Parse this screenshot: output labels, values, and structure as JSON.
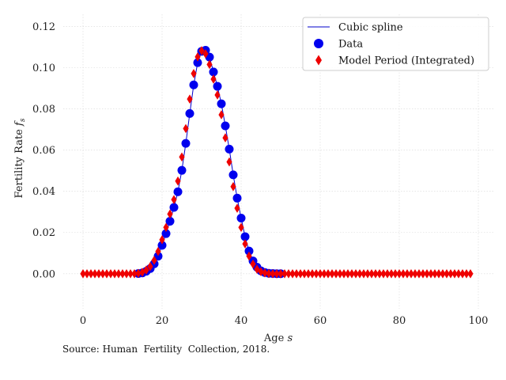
{
  "chart_data": {
    "type": "line",
    "xlabel": "Age s",
    "ylabel": "Fertility Rate f_s",
    "xlim": [
      -5,
      104
    ],
    "ylim": [
      -0.017,
      0.126
    ],
    "xticks": [
      0,
      20,
      40,
      60,
      80,
      100
    ],
    "xtick_labels": [
      "0",
      "20",
      "40",
      "60",
      "80",
      "100"
    ],
    "yticks": [
      0.0,
      0.02,
      0.04,
      0.06,
      0.08,
      0.1,
      0.12
    ],
    "ytick_labels": [
      "0.00",
      "0.02",
      "0.04",
      "0.06",
      "0.08",
      "0.10",
      "0.12"
    ],
    "grid": true,
    "legend_position": "top-right",
    "series": [
      {
        "name": "Cubic spline",
        "kind": "line",
        "color": "#0000cc",
        "x": [
          14,
          15,
          16,
          17,
          18,
          19,
          20,
          21,
          22,
          23,
          24,
          25,
          26,
          27,
          28,
          29,
          30,
          31,
          32,
          33,
          34,
          35,
          36,
          37,
          38,
          39,
          40,
          41,
          42,
          43,
          44,
          45,
          46,
          47,
          48,
          49,
          50
        ],
        "y": [
          0.0001,
          0.0004,
          0.0012,
          0.0025,
          0.0048,
          0.0085,
          0.0138,
          0.0195,
          0.0255,
          0.0322,
          0.0398,
          0.0502,
          0.0633,
          0.0778,
          0.0917,
          0.1025,
          0.108,
          0.1085,
          0.1052,
          0.098,
          0.091,
          0.0825,
          0.0718,
          0.0605,
          0.048,
          0.0367,
          0.027,
          0.018,
          0.011,
          0.0062,
          0.0032,
          0.0014,
          0.0006,
          0.0002,
          0.0001,
          0.0,
          0.0
        ]
      },
      {
        "name": "Data",
        "kind": "scatter",
        "marker": "circle",
        "color": "#0000ee",
        "x": [
          14,
          15,
          16,
          17,
          18,
          19,
          20,
          21,
          22,
          23,
          24,
          25,
          26,
          27,
          28,
          29,
          30,
          31,
          32,
          33,
          34,
          35,
          36,
          37,
          38,
          39,
          40,
          41,
          42,
          43,
          44,
          45,
          46,
          47,
          48,
          49,
          50
        ],
        "y": [
          0.0001,
          0.0004,
          0.0012,
          0.0025,
          0.0048,
          0.0085,
          0.0138,
          0.0195,
          0.0255,
          0.0322,
          0.0398,
          0.0502,
          0.0633,
          0.0778,
          0.0917,
          0.1025,
          0.108,
          0.1085,
          0.1052,
          0.098,
          0.091,
          0.0825,
          0.0718,
          0.0605,
          0.048,
          0.0367,
          0.027,
          0.018,
          0.011,
          0.0062,
          0.0032,
          0.0014,
          0.0006,
          0.0002,
          0.0001,
          0.0,
          0.0
        ]
      },
      {
        "name": "Model Period (Integrated)",
        "kind": "scatter",
        "marker": "diamond",
        "color": "#ee0000",
        "x": [
          0,
          1,
          2,
          3,
          4,
          5,
          6,
          7,
          8,
          9,
          10,
          11,
          12,
          13,
          14,
          15,
          16,
          17,
          18,
          19,
          20,
          21,
          22,
          23,
          24,
          25,
          26,
          27,
          28,
          29,
          30,
          31,
          32,
          33,
          34,
          35,
          36,
          37,
          38,
          39,
          40,
          41,
          42,
          43,
          44,
          45,
          46,
          47,
          48,
          49,
          50,
          51,
          52,
          53,
          54,
          55,
          56,
          57,
          58,
          59,
          60,
          61,
          62,
          63,
          64,
          65,
          66,
          67,
          68,
          69,
          70,
          71,
          72,
          73,
          74,
          75,
          76,
          77,
          78,
          79,
          80,
          81,
          82,
          83,
          84,
          85,
          86,
          87,
          88,
          89,
          90,
          91,
          92,
          93,
          94,
          95,
          96,
          97,
          98
        ],
        "y": [
          0,
          0,
          0,
          0,
          0,
          0,
          0,
          0,
          0,
          0,
          0,
          0,
          0,
          0,
          0.0002,
          0.0007,
          0.0018,
          0.0035,
          0.0065,
          0.0108,
          0.0165,
          0.0225,
          0.029,
          0.036,
          0.045,
          0.0567,
          0.0705,
          0.0848,
          0.0972,
          0.1053,
          0.1083,
          0.1068,
          0.1016,
          0.0945,
          0.0868,
          0.0772,
          0.066,
          0.0543,
          0.0423,
          0.0318,
          0.0225,
          0.0145,
          0.0086,
          0.0047,
          0.0022,
          0.001,
          0.0004,
          0.0001,
          0,
          0,
          0,
          0,
          0,
          0,
          0,
          0,
          0,
          0,
          0,
          0,
          0,
          0,
          0,
          0,
          0,
          0,
          0,
          0,
          0,
          0,
          0,
          0,
          0,
          0,
          0,
          0,
          0,
          0,
          0,
          0,
          0,
          0,
          0,
          0,
          0,
          0,
          0,
          0,
          0,
          0,
          0,
          0,
          0,
          0,
          0,
          0,
          0,
          0,
          0
        ]
      }
    ]
  },
  "source_note": "Source: Human  Fertility  Collection, 2018."
}
